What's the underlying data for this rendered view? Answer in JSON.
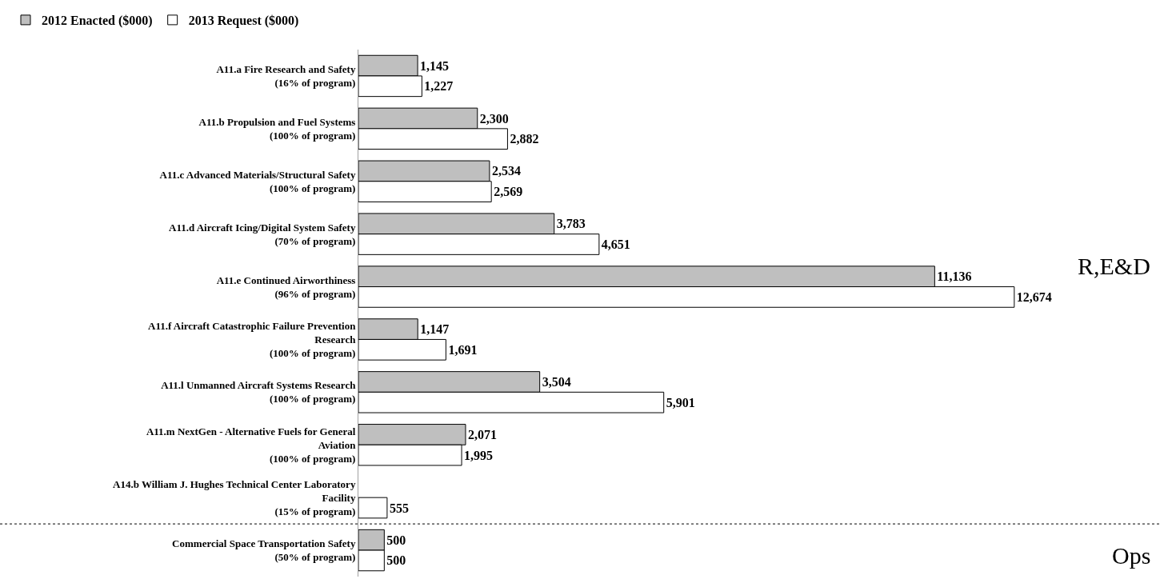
{
  "chart_data": {
    "type": "bar",
    "orientation": "horizontal",
    "legend": "top left",
    "categories": [
      "A11.a Fire Research and Safety\n(16% of program)",
      "A11.b Propulsion and Fuel Systems\n(100% of program)",
      "A11.c Advanced Materials/Structural Safety\n(100% of program)",
      "A11.d Aircraft Icing/Digital System Safety\n(70% of program)",
      "A11.e Continued Airworthiness\n(96% of program)",
      "A11.f Aircraft Catastrophic Failure Prevention\nResearch\n(100% of program)",
      "A11.l Unmanned Aircraft Systems Research\n(100% of program)",
      "A11.m NextGen - Alternative Fuels for General\nAviation\n(100% of program)",
      "A14.b William J. Hughes Technical Center Laboratory\nFacility\n(15% of program)",
      "Commercial Space Transportation Safety\n(50% of program)"
    ],
    "series": [
      {
        "name": "2012 Enacted ($000)",
        "color": "#bfbfbf",
        "values": [
          1145,
          2300,
          2534,
          3783,
          11136,
          1147,
          3504,
          2071,
          null,
          500
        ],
        "value_labels": [
          "1,145",
          "2,300",
          "2,534",
          "3,783",
          "11,136",
          "1,147",
          "3,504",
          "2,071",
          null,
          "500"
        ]
      },
      {
        "name": "2013 Request ($000)",
        "color": "#ffffff",
        "values": [
          1227,
          2882,
          2569,
          4651,
          12674,
          1691,
          5901,
          1995,
          555,
          500
        ],
        "value_labels": [
          "1,227",
          "2,882",
          "2,569",
          "4,651",
          "12,674",
          "1,691",
          "5,901",
          "1,995",
          "555",
          "500"
        ]
      }
    ],
    "annotations": [
      "R,E&D",
      "Ops"
    ]
  }
}
